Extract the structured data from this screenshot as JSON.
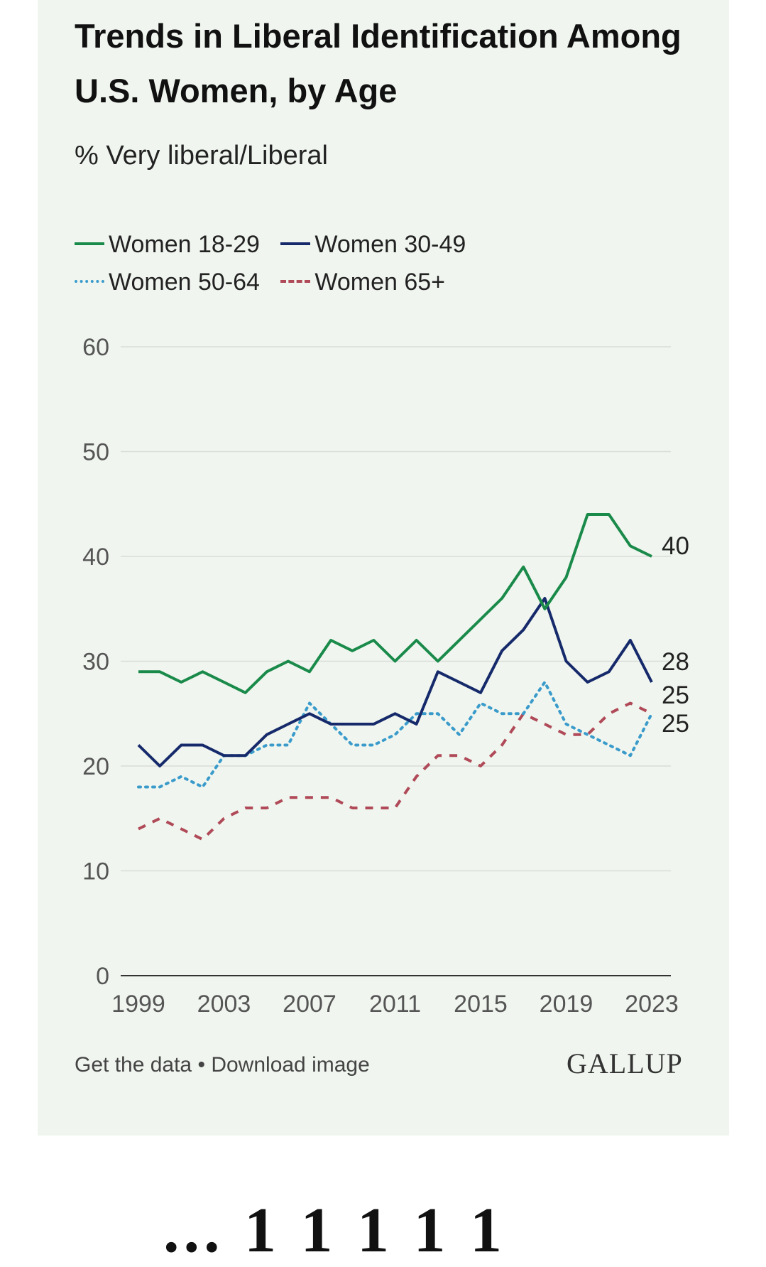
{
  "title": "Trends in Liberal Identification Among U.S. Women, by Age",
  "subtitle": "% Very liberal/Liberal",
  "footer": {
    "get_data": "Get the data",
    "separator": "•",
    "download": "Download image"
  },
  "brand": "GALLUP",
  "below_text": "... 1   1 1 1 1",
  "colors": {
    "background": "#f0f6ef",
    "grid": "#d9dcd8",
    "axis": "#333333",
    "tick_label": "#555555"
  },
  "chart_data": {
    "type": "line",
    "title": "Trends in Liberal Identification Among U.S. Women, by Age",
    "subtitle": "% Very liberal/Liberal",
    "xlabel": "",
    "ylabel": "",
    "xlim": [
      1999,
      2023
    ],
    "ylim": [
      0,
      60
    ],
    "xticks": [
      1999,
      2003,
      2007,
      2011,
      2015,
      2019,
      2023
    ],
    "yticks": [
      0,
      10,
      20,
      30,
      40,
      50,
      60
    ],
    "grid": true,
    "legend_position": "top",
    "x": [
      1999,
      2000,
      2001,
      2002,
      2003,
      2004,
      2005,
      2006,
      2007,
      2008,
      2009,
      2010,
      2011,
      2012,
      2013,
      2014,
      2015,
      2016,
      2017,
      2018,
      2019,
      2020,
      2021,
      2022,
      2023
    ],
    "series": [
      {
        "name": "Women 18-29",
        "color": "#1a8a4a",
        "dash": "solid",
        "end_label": "40",
        "values": [
          29,
          29,
          28,
          29,
          28,
          27,
          29,
          30,
          29,
          32,
          31,
          32,
          30,
          32,
          30,
          32,
          34,
          36,
          39,
          35,
          38,
          44,
          44,
          41,
          40
        ]
      },
      {
        "name": "Women 30-49",
        "color": "#162a6b",
        "dash": "solid",
        "end_label": "28",
        "values": [
          22,
          20,
          22,
          22,
          21,
          21,
          23,
          24,
          25,
          24,
          24,
          24,
          25,
          24,
          29,
          28,
          27,
          31,
          33,
          36,
          30,
          28,
          29,
          32,
          28
        ]
      },
      {
        "name": "Women 50-64",
        "color": "#3a9bcb",
        "dash": "dotted",
        "end_label": "25",
        "values": [
          18,
          18,
          19,
          18,
          21,
          21,
          22,
          22,
          26,
          24,
          22,
          22,
          23,
          25,
          25,
          23,
          26,
          25,
          25,
          28,
          24,
          23,
          22,
          21,
          25
        ]
      },
      {
        "name": "Women 65+",
        "color": "#b04a58",
        "dash": "dashed",
        "end_label": "25",
        "values": [
          14,
          15,
          14,
          13,
          15,
          16,
          16,
          17,
          17,
          17,
          16,
          16,
          16,
          19,
          21,
          21,
          20,
          22,
          25,
          24,
          23,
          23,
          25,
          26,
          25
        ]
      }
    ]
  }
}
